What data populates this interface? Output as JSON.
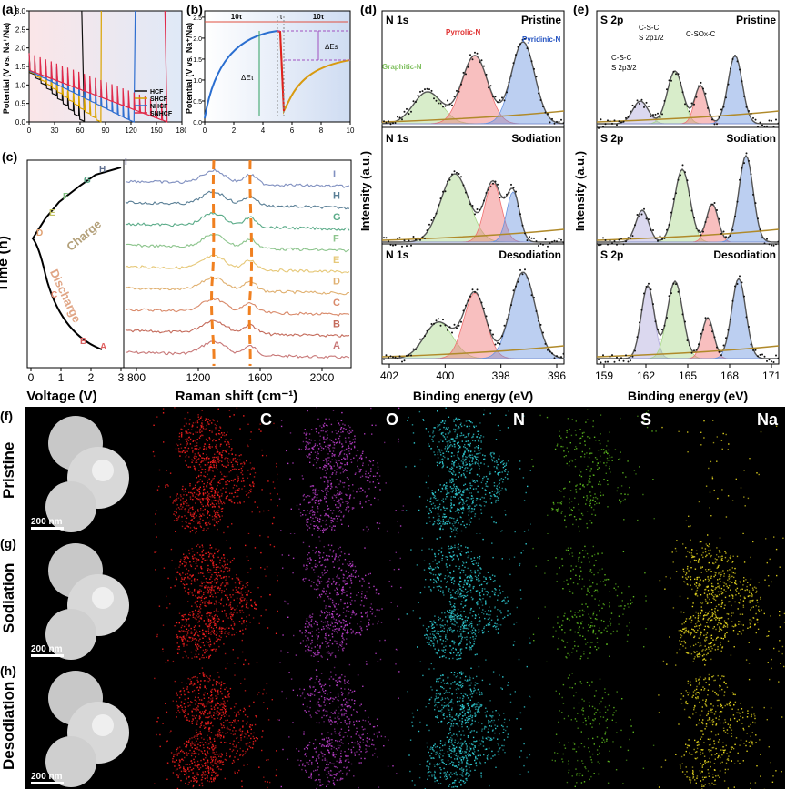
{
  "panels": {
    "a": {
      "label": "(a)",
      "ylabel": "Potential (V vs. Na⁺/Na)",
      "xticks": [
        "0",
        "30",
        "60",
        "90",
        "120",
        "150",
        "180"
      ],
      "yticks": [
        "0.0",
        "0.5",
        "1.0",
        "1.5",
        "2.0",
        "2.5",
        "3.0"
      ],
      "legend": [
        {
          "name": "HCF",
          "color": "#111111"
        },
        {
          "name": "SHCF",
          "color": "#d9a400"
        },
        {
          "name": "NHCF",
          "color": "#2f6fd0"
        },
        {
          "name": "SNHCF",
          "color": "#e02a4a"
        }
      ]
    },
    "b": {
      "label": "(b)",
      "ylabel": "Potential (V vs. Na⁺/Na)",
      "xticks": [
        "0",
        "2",
        "4",
        "6",
        "8",
        "10"
      ],
      "yticks": [
        "0.0",
        "0.5",
        "1.0",
        "1.5",
        "2.0",
        "2.5"
      ],
      "ann_10tau_left": "10τ",
      "ann_tau": "τ",
      "ann_10tau_right": "10τ",
      "ann_dEs": "ΔEs",
      "ann_dEt": "ΔEτ"
    },
    "c": {
      "label": "(c)",
      "ylabel": "Time (h)",
      "xlabel_left": "Voltage (V)",
      "xlabel_right": "Raman shift (cm⁻¹)",
      "xticks_left": [
        "0",
        "1",
        "2",
        "3"
      ],
      "xticks_right": [
        "800",
        "1200",
        "1600",
        "2000"
      ],
      "charge": "Charge",
      "discharge": "Discharge",
      "points": [
        "A",
        "B",
        "C",
        "D",
        "E",
        "F",
        "G",
        "H",
        "I"
      ]
    },
    "d": {
      "label": "(d)",
      "ylabel": "Intensity (a.u.)",
      "xlabel": "Binding energy (eV)",
      "xticks": [
        "402",
        "400",
        "398",
        "396"
      ],
      "sub": [
        {
          "elem": "N 1s",
          "state": "Pristine",
          "p1": "Pyrrolic-N",
          "p2": "Pyridinic-N",
          "p3": "Graphitic-N"
        },
        {
          "elem": "N 1s",
          "state": "Sodiation"
        },
        {
          "elem": "N 1s",
          "state": "Desodiation"
        }
      ]
    },
    "e": {
      "label": "(e)",
      "ylabel": "Intensity (a.u.)",
      "xlabel": "Binding energy (eV)",
      "xticks": [
        "159",
        "162",
        "165",
        "168",
        "171"
      ],
      "sub": [
        {
          "elem": "S 2p",
          "state": "Pristine",
          "p1": "C-S-C",
          "p1b": "S 2p1/2",
          "p2": "C-SOx-C",
          "p3": "C-S-C",
          "p3b": "S 2p3/2"
        },
        {
          "elem": "S 2p",
          "state": "Sodiation"
        },
        {
          "elem": "S 2p",
          "state": "Desodiation"
        }
      ]
    }
  },
  "maps": {
    "rows": [
      {
        "panel": "(f)",
        "name": "Pristine",
        "scale": "200 nm"
      },
      {
        "panel": "(g)",
        "name": "Sodiation",
        "scale": "200 nm"
      },
      {
        "panel": "(h)",
        "name": "Desodiation",
        "scale": "200 nm"
      }
    ],
    "elements": [
      {
        "name": "C",
        "color": "#ff2020"
      },
      {
        "name": "O",
        "color": "#c040d0"
      },
      {
        "name": "N",
        "color": "#30d0d8"
      },
      {
        "name": "S",
        "color": "#60c020"
      },
      {
        "name": "Na",
        "color": "#f0e020"
      }
    ]
  }
}
